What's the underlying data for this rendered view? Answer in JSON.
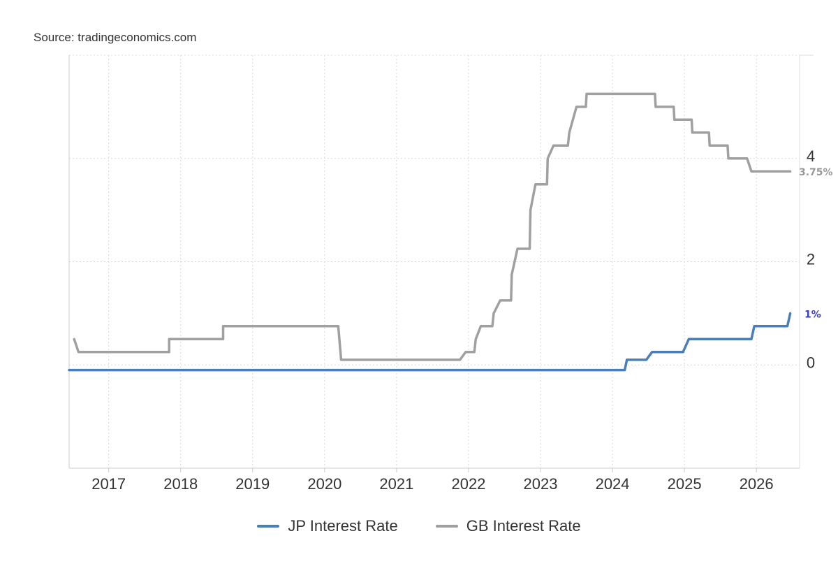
{
  "source": "Source: tradingeconomics.com",
  "chart_data": {
    "type": "line",
    "y_axis_position": "right",
    "grid": true,
    "gridline_style": "dotted",
    "xlim": [
      2016.45,
      2026.6
    ],
    "ylim": [
      -2,
      6.0
    ],
    "x_ticks": [
      2017,
      2018,
      2019,
      2020,
      2021,
      2022,
      2023,
      2024,
      2025,
      2026
    ],
    "x_tick_labels": [
      "2017",
      "2018",
      "2019",
      "2020",
      "2021",
      "2022",
      "2023",
      "2024",
      "2025",
      "2026"
    ],
    "y_ticks": [
      0,
      2,
      4
    ],
    "y_tick_labels": [
      "0",
      "2",
      "4"
    ],
    "series": [
      {
        "name": "JP Interest Rate",
        "color": "#4a7ebb",
        "end_label": "1%",
        "end_label_color": "#3b3fc4",
        "points": [
          [
            2016.45,
            -0.1
          ],
          [
            2024.17,
            -0.1
          ],
          [
            2024.2,
            0.1
          ],
          [
            2024.47,
            0.1
          ],
          [
            2024.55,
            0.25
          ],
          [
            2024.98,
            0.25
          ],
          [
            2025.06,
            0.5
          ],
          [
            2025.93,
            0.5
          ],
          [
            2025.97,
            0.75
          ],
          [
            2026.43,
            0.75
          ],
          [
            2026.47,
            1.0
          ]
        ]
      },
      {
        "name": "GB Interest Rate",
        "color": "#a0a0a0",
        "end_label": "3.75%",
        "end_label_color": "#999999",
        "points": [
          [
            2016.52,
            0.5
          ],
          [
            2016.58,
            0.25
          ],
          [
            2017.84,
            0.25
          ],
          [
            2017.84,
            0.5
          ],
          [
            2018.59,
            0.5
          ],
          [
            2018.59,
            0.75
          ],
          [
            2020.19,
            0.75
          ],
          [
            2020.23,
            0.1
          ],
          [
            2021.88,
            0.1
          ],
          [
            2021.96,
            0.25
          ],
          [
            2022.08,
            0.25
          ],
          [
            2022.1,
            0.5
          ],
          [
            2022.17,
            0.75
          ],
          [
            2022.33,
            0.75
          ],
          [
            2022.35,
            1.0
          ],
          [
            2022.44,
            1.25
          ],
          [
            2022.59,
            1.25
          ],
          [
            2022.6,
            1.75
          ],
          [
            2022.68,
            2.25
          ],
          [
            2022.85,
            2.25
          ],
          [
            2022.86,
            3.0
          ],
          [
            2022.93,
            3.5
          ],
          [
            2023.09,
            3.5
          ],
          [
            2023.1,
            4.0
          ],
          [
            2023.18,
            4.25
          ],
          [
            2023.38,
            4.25
          ],
          [
            2023.4,
            4.5
          ],
          [
            2023.5,
            5.0
          ],
          [
            2023.63,
            5.0
          ],
          [
            2023.64,
            5.25
          ],
          [
            2024.59,
            5.25
          ],
          [
            2024.6,
            5.0
          ],
          [
            2024.85,
            5.0
          ],
          [
            2024.86,
            4.75
          ],
          [
            2025.1,
            4.75
          ],
          [
            2025.11,
            4.5
          ],
          [
            2025.34,
            4.5
          ],
          [
            2025.35,
            4.25
          ],
          [
            2025.6,
            4.25
          ],
          [
            2025.61,
            4.0
          ],
          [
            2025.87,
            4.0
          ],
          [
            2025.93,
            3.75
          ],
          [
            2026.47,
            3.75
          ]
        ]
      }
    ]
  }
}
